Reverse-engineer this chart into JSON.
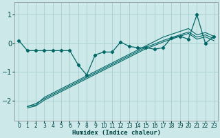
{
  "xlabel": "Humidex (Indice chaleur)",
  "bg_color": "#cce8e8",
  "grid_color": "#a8cccc",
  "line_color": "#006666",
  "xlim": [
    -0.5,
    23.5
  ],
  "ylim": [
    -2.7,
    1.45
  ],
  "yticks": [
    -2,
    -1,
    0,
    1
  ],
  "xticks": [
    0,
    1,
    2,
    3,
    4,
    5,
    6,
    7,
    8,
    9,
    10,
    11,
    12,
    13,
    14,
    15,
    16,
    17,
    18,
    19,
    20,
    21,
    22,
    23
  ],
  "main_x": [
    0,
    1,
    2,
    3,
    4,
    5,
    6,
    7,
    8,
    9,
    10,
    11,
    12,
    13,
    14,
    15,
    16,
    17,
    18,
    19,
    20,
    21,
    22,
    23
  ],
  "main_y": [
    0.1,
    -0.25,
    -0.25,
    -0.25,
    -0.25,
    -0.25,
    -0.25,
    -0.75,
    -1.1,
    -0.4,
    -0.3,
    -0.3,
    0.05,
    -0.1,
    -0.15,
    -0.15,
    -0.2,
    -0.15,
    0.2,
    0.25,
    0.15,
    1.0,
    0.0,
    0.25
  ],
  "line1_x": [
    1,
    2,
    3,
    4,
    5,
    6,
    7,
    8,
    9,
    10,
    11,
    12,
    13,
    14,
    15,
    16,
    17,
    18,
    19,
    20,
    21,
    22,
    23
  ],
  "line1_y": [
    -2.2,
    -2.15,
    -1.88,
    -1.73,
    -1.58,
    -1.43,
    -1.28,
    -1.13,
    -0.98,
    -0.83,
    -0.68,
    -0.53,
    -0.38,
    -0.23,
    -0.08,
    0.07,
    0.22,
    0.32,
    0.42,
    0.52,
    0.3,
    0.38,
    0.25
  ],
  "line2_x": [
    1,
    2,
    3,
    4,
    5,
    6,
    7,
    8,
    9,
    10,
    11,
    12,
    13,
    14,
    15,
    16,
    17,
    18,
    19,
    20,
    21,
    22,
    23
  ],
  "line2_y": [
    -2.2,
    -2.1,
    -1.93,
    -1.78,
    -1.63,
    -1.48,
    -1.33,
    -1.18,
    -1.03,
    -0.88,
    -0.73,
    -0.58,
    -0.43,
    -0.28,
    -0.13,
    -0.02,
    0.1,
    0.2,
    0.3,
    0.4,
    0.22,
    0.3,
    0.17
  ],
  "line3_x": [
    1,
    2,
    3,
    4,
    5,
    6,
    7,
    8,
    9,
    10,
    11,
    12,
    13,
    14,
    15,
    16,
    17,
    18,
    19,
    20,
    21,
    22,
    23
  ],
  "line3_y": [
    -2.25,
    -2.18,
    -1.98,
    -1.83,
    -1.68,
    -1.53,
    -1.38,
    -1.23,
    -1.08,
    -0.93,
    -0.78,
    -0.63,
    -0.48,
    -0.33,
    -0.18,
    -0.07,
    0.05,
    0.15,
    0.25,
    0.35,
    0.15,
    0.23,
    0.1
  ]
}
